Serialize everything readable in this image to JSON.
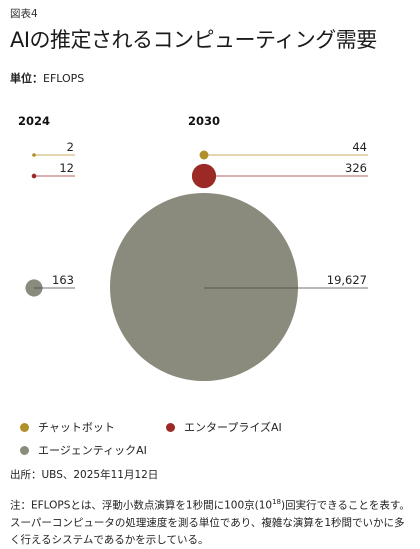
{
  "figure_label": "図表4",
  "title": "AIの推定されるコンピューティング需要",
  "unit_key": "単位：",
  "unit_value": "EFLOPS",
  "colors": {
    "chatbot": "#b18f2b",
    "enterprise": "#9b2a26",
    "agentic": "#8a8a7d",
    "leader": "#555555"
  },
  "chart_data": {
    "type": "bubble",
    "title": "AIの推定されるコンピューティング需要",
    "unit": "EFLOPS",
    "groups": [
      "2024",
      "2030"
    ],
    "series": [
      {
        "name": "チャットボット",
        "values": [
          2,
          44
        ],
        "labels": [
          "2",
          "44"
        ]
      },
      {
        "name": "エンタープライズAI",
        "values": [
          12,
          326
        ],
        "labels": [
          "12",
          "326"
        ]
      },
      {
        "name": "エージェンティックAI",
        "values": [
          163,
          19627
        ],
        "labels": [
          "163",
          "19,627"
        ]
      }
    ],
    "legend_position": "bottom"
  },
  "legend": [
    {
      "label": "チャットボット",
      "color": "#b18f2b"
    },
    {
      "label": "エンタープライズAI",
      "color": "#9b2a26"
    },
    {
      "label": "エージェンティックAI",
      "color": "#8a8a7d"
    }
  ],
  "source": "出所：UBS、2025年11月12日",
  "note_before": "注：EFLOPSとは、浮動小数点演算を1秒間に100京(10",
  "note_sup": "18",
  "note_after": ")回実行できることを表す。スーパーコンピュータの処理速度を測る単位であり、複雑な演算を1秒間でいかに多く行えるシステムであるかを示している。"
}
